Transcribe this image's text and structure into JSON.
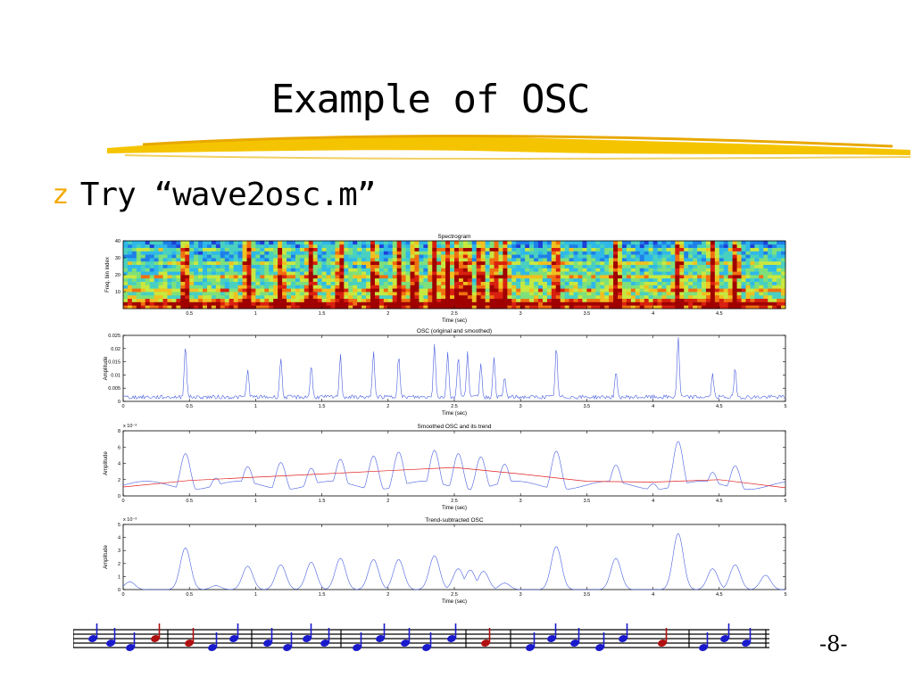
{
  "slide": {
    "title": "Example of OSC",
    "bullet_mark": "z",
    "bullet_text": "Try “wave2osc.m”",
    "page_number": "-8-"
  },
  "colors": {
    "bullet": "#f2a900",
    "osc_line": "#4a5fe0",
    "trend_line": "#e02020",
    "underline": "#f5c400"
  },
  "chart_data": [
    {
      "type": "heatmap",
      "title": "Spectrogram",
      "xlabel": "Time (sec)",
      "ylabel": "Freq. bin index",
      "xlim": [
        0,
        5
      ],
      "ylim": [
        0,
        40
      ],
      "xticks": [
        "0.5",
        "1",
        "1.5",
        "2",
        "2.5",
        "3",
        "3.5",
        "4",
        "4.5"
      ],
      "yticks": [
        "10",
        "20",
        "30",
        "40"
      ],
      "onsets": [
        0.47,
        0.94,
        1.19,
        1.42,
        1.64,
        1.89,
        2.08,
        2.2,
        2.35,
        2.45,
        2.53,
        2.6,
        2.7,
        2.8,
        2.88,
        3.27,
        3.72,
        4.19,
        4.45,
        4.62
      ]
    },
    {
      "type": "line",
      "title": "OSC (original and smoothed)",
      "xlabel": "Time (sec)",
      "ylabel": "Amplitude",
      "xlim": [
        0,
        5
      ],
      "ylim": [
        0,
        0.025
      ],
      "xticks": [
        "0",
        "0.5",
        "1",
        "1.5",
        "2",
        "2.5",
        "3",
        "3.5",
        "4",
        "4.5",
        "5"
      ],
      "yticks": [
        "0",
        "0.005",
        "0.01",
        "0.015",
        "0.02",
        "0.025"
      ],
      "peaks": [
        {
          "x": 0.47,
          "y": 0.0205
        },
        {
          "x": 0.94,
          "y": 0.0105
        },
        {
          "x": 1.19,
          "y": 0.015
        },
        {
          "x": 1.42,
          "y": 0.012
        },
        {
          "x": 1.64,
          "y": 0.016
        },
        {
          "x": 1.89,
          "y": 0.017
        },
        {
          "x": 2.08,
          "y": 0.0165
        },
        {
          "x": 2.35,
          "y": 0.0205
        },
        {
          "x": 2.45,
          "y": 0.017
        },
        {
          "x": 2.53,
          "y": 0.016
        },
        {
          "x": 2.6,
          "y": 0.0175
        },
        {
          "x": 2.7,
          "y": 0.013
        },
        {
          "x": 2.8,
          "y": 0.015
        },
        {
          "x": 2.88,
          "y": 0.0075
        },
        {
          "x": 3.27,
          "y": 0.019
        },
        {
          "x": 3.72,
          "y": 0.0095
        },
        {
          "x": 4.19,
          "y": 0.0225
        },
        {
          "x": 4.45,
          "y": 0.0085
        },
        {
          "x": 4.62,
          "y": 0.0105
        }
      ]
    },
    {
      "type": "line",
      "title": "Smoothed OSC and its trend",
      "xlabel": "Time (sec)",
      "ylabel": "Amplitude",
      "y_exponent": "x 10⁻³",
      "xlim": [
        0,
        5
      ],
      "ylim": [
        0,
        8
      ],
      "xticks": [
        "0",
        "0.5",
        "1",
        "1.5",
        "2",
        "2.5",
        "3",
        "3.5",
        "4",
        "4.5",
        "5"
      ],
      "yticks": [
        "0",
        "2",
        "4",
        "6",
        "8"
      ],
      "peaks": [
        {
          "x": 0.47,
          "y": 5.2
        },
        {
          "x": 0.7,
          "y": 2.2
        },
        {
          "x": 0.94,
          "y": 3.6
        },
        {
          "x": 1.19,
          "y": 4.1
        },
        {
          "x": 1.42,
          "y": 3.4
        },
        {
          "x": 1.64,
          "y": 4.5
        },
        {
          "x": 1.89,
          "y": 4.9
        },
        {
          "x": 2.08,
          "y": 5.4
        },
        {
          "x": 2.35,
          "y": 5.6
        },
        {
          "x": 2.53,
          "y": 5.2
        },
        {
          "x": 2.7,
          "y": 4.8
        },
        {
          "x": 2.88,
          "y": 3.9
        },
        {
          "x": 3.27,
          "y": 5.5
        },
        {
          "x": 3.72,
          "y": 3.8
        },
        {
          "x": 4.0,
          "y": 1.5
        },
        {
          "x": 4.19,
          "y": 6.7
        },
        {
          "x": 4.45,
          "y": 2.9
        },
        {
          "x": 4.62,
          "y": 3.7
        }
      ],
      "trend": {
        "x": [
          0,
          0.5,
          1,
          1.5,
          2,
          2.5,
          3,
          3.5,
          4,
          4.5,
          5
        ],
        "y": [
          1.1,
          1.9,
          2.3,
          2.7,
          3.1,
          3.5,
          2.7,
          1.8,
          1.7,
          2.0,
          1.0
        ]
      }
    },
    {
      "type": "line",
      "title": "Trend-subtracted OSC",
      "xlabel": "Time (sec)",
      "ylabel": "Amplitude",
      "y_exponent": "x 10⁻³",
      "xlim": [
        0,
        5
      ],
      "ylim": [
        0,
        5
      ],
      "xticks": [
        "0",
        "0.5",
        "1",
        "1.5",
        "2",
        "2.5",
        "3",
        "3.5",
        "4",
        "4.5",
        "5"
      ],
      "yticks": [
        "0",
        "1",
        "2",
        "3",
        "4",
        "5"
      ],
      "peaks": [
        {
          "x": 0.05,
          "y": 0.6
        },
        {
          "x": 0.47,
          "y": 3.2
        },
        {
          "x": 0.7,
          "y": 0.3
        },
        {
          "x": 0.94,
          "y": 1.8
        },
        {
          "x": 1.19,
          "y": 1.9
        },
        {
          "x": 1.42,
          "y": 2.1
        },
        {
          "x": 1.64,
          "y": 2.4
        },
        {
          "x": 1.89,
          "y": 2.3
        },
        {
          "x": 2.08,
          "y": 2.3
        },
        {
          "x": 2.35,
          "y": 2.6
        },
        {
          "x": 2.53,
          "y": 1.6
        },
        {
          "x": 2.62,
          "y": 1.5
        },
        {
          "x": 2.72,
          "y": 1.4
        },
        {
          "x": 2.88,
          "y": 0.5
        },
        {
          "x": 3.27,
          "y": 3.3
        },
        {
          "x": 3.72,
          "y": 2.4
        },
        {
          "x": 4.19,
          "y": 4.3
        },
        {
          "x": 4.45,
          "y": 1.6
        },
        {
          "x": 4.62,
          "y": 1.9
        },
        {
          "x": 4.85,
          "y": 1.1
        }
      ]
    }
  ]
}
